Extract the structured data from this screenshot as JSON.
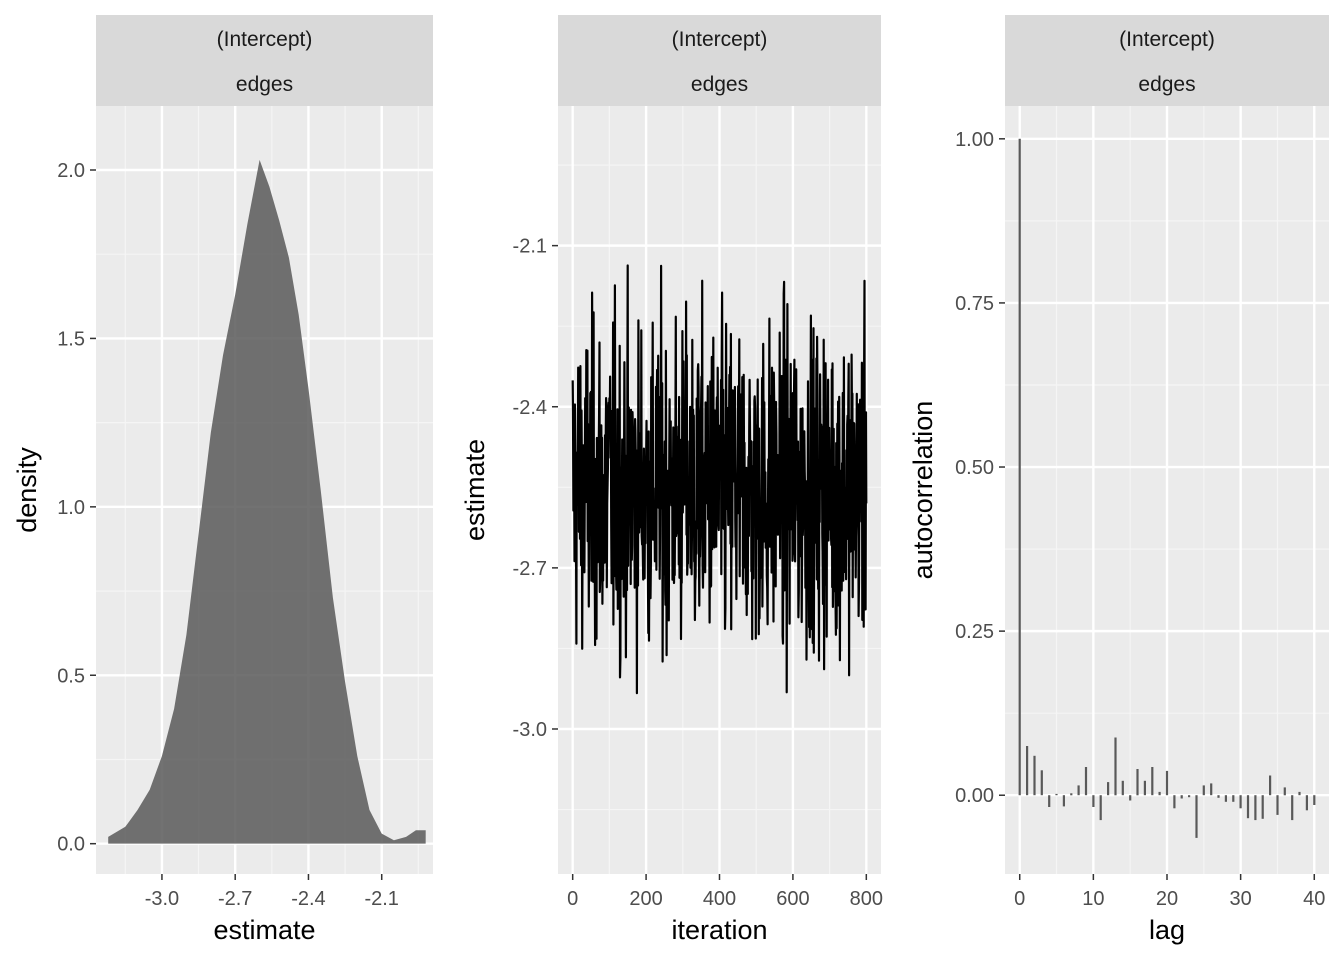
{
  "chart_data": [
    {
      "type": "area",
      "strip": [
        "(Intercept)",
        "edges"
      ],
      "xlabel": "estimate",
      "ylabel": "density",
      "xlim": [
        -3.27,
        -1.89
      ],
      "ylim": [
        -0.09,
        2.19
      ],
      "x_ticks": [
        -3.0,
        -2.7,
        -2.4,
        -2.1
      ],
      "x_tick_labels": [
        "-3.0",
        "-2.7",
        "-2.4",
        "-2.1"
      ],
      "y_ticks": [
        0.0,
        0.5,
        1.0,
        1.5,
        2.0
      ],
      "y_tick_labels": [
        "0.0",
        "0.5",
        "1.0",
        "1.5",
        "2.0"
      ],
      "fill_color": "#595959",
      "x": [
        -3.22,
        -3.15,
        -3.1,
        -3.05,
        -3.0,
        -2.95,
        -2.9,
        -2.85,
        -2.8,
        -2.75,
        -2.7,
        -2.65,
        -2.6,
        -2.56,
        -2.52,
        -2.48,
        -2.44,
        -2.4,
        -2.35,
        -2.3,
        -2.25,
        -2.2,
        -2.15,
        -2.1,
        -2.05,
        -2.0,
        -1.96,
        -1.92
      ],
      "y": [
        0.02,
        0.05,
        0.1,
        0.16,
        0.26,
        0.4,
        0.62,
        0.92,
        1.22,
        1.45,
        1.63,
        1.84,
        2.03,
        1.95,
        1.85,
        1.74,
        1.57,
        1.35,
        1.05,
        0.73,
        0.48,
        0.26,
        0.1,
        0.03,
        0.01,
        0.02,
        0.04,
        0.04
      ]
    },
    {
      "type": "line",
      "strip": [
        "(Intercept)",
        "edges"
      ],
      "xlabel": "iteration",
      "ylabel": "estimate",
      "xlim": [
        -40,
        840
      ],
      "ylim": [
        -3.27,
        -1.84
      ],
      "x_ticks": [
        0,
        200,
        400,
        600,
        800
      ],
      "x_tick_labels": [
        "0",
        "200",
        "400",
        "600",
        "800"
      ],
      "y_ticks": [
        -3.0,
        -2.7,
        -2.4,
        -2.1
      ],
      "y_tick_labels": [
        "-3.0",
        "-2.7",
        "-2.4",
        "-2.1"
      ],
      "line_color": "#000000",
      "n_iterations": 800,
      "mean": -2.55,
      "sd": 0.15
    },
    {
      "type": "bar",
      "strip": [
        "(Intercept)",
        "edges"
      ],
      "xlabel": "lag",
      "ylabel": "autocorrelation",
      "xlim": [
        -2,
        42
      ],
      "ylim": [
        -0.12,
        1.05
      ],
      "x_ticks": [
        0,
        10,
        20,
        30,
        40
      ],
      "x_tick_labels": [
        "0",
        "10",
        "20",
        "30",
        "40"
      ],
      "y_ticks": [
        0.0,
        0.25,
        0.5,
        0.75,
        1.0
      ],
      "y_tick_labels": [
        "0.00",
        "0.25",
        "0.50",
        "0.75",
        "1.00"
      ],
      "bar_color": "#595959",
      "lags": [
        0,
        1,
        2,
        3,
        4,
        5,
        6,
        7,
        8,
        9,
        10,
        11,
        12,
        13,
        14,
        15,
        16,
        17,
        18,
        19,
        20,
        21,
        22,
        23,
        24,
        25,
        26,
        27,
        28,
        29,
        30,
        31,
        32,
        33,
        34,
        35,
        36,
        37,
        38,
        39,
        40
      ],
      "values": [
        1.0,
        0.075,
        0.06,
        0.038,
        -0.018,
        0.002,
        -0.017,
        0.003,
        0.015,
        0.043,
        -0.018,
        -0.038,
        0.02,
        0.088,
        0.022,
        -0.008,
        0.04,
        0.022,
        0.043,
        0.005,
        0.037,
        -0.02,
        -0.005,
        -0.003,
        -0.065,
        0.015,
        0.018,
        -0.004,
        -0.01,
        -0.01,
        -0.02,
        -0.035,
        -0.038,
        -0.036,
        0.03,
        -0.03,
        0.012,
        -0.038,
        0.005,
        -0.023,
        -0.015
      ]
    }
  ]
}
